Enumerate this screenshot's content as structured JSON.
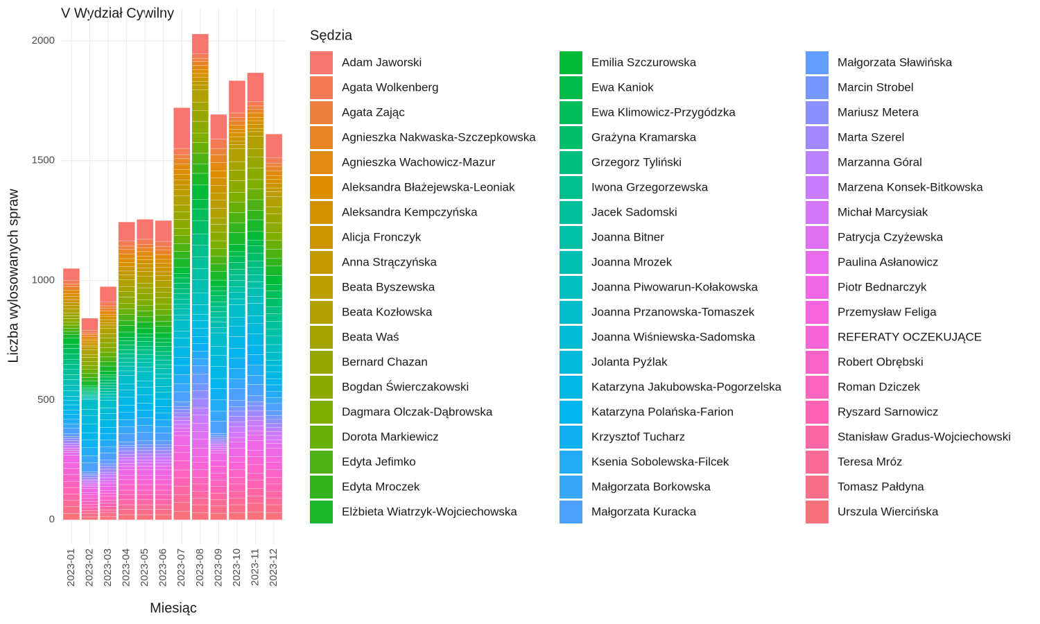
{
  "chart_data": {
    "type": "stacked_bar",
    "title": "V Wydział Cywilny",
    "x_label": "Miesiąc",
    "y_label": "Liczba wylosowanych spraw",
    "legend_title": "Sędzia",
    "categories": [
      "2023-01",
      "2023-02",
      "2023-03",
      "2023-04",
      "2023-05",
      "2023-06",
      "2023-07",
      "2023-08",
      "2023-09",
      "2023-10",
      "2023-11",
      "2023-12"
    ],
    "ylim": [
      -102,
      2134
    ],
    "yticks": [
      0,
      500,
      1000,
      1500,
      2000
    ],
    "grid": true,
    "legend_position": "right",
    "series": [
      {
        "name": "Adam Jaworski",
        "color": "#F8766D",
        "values": [
          50,
          50,
          65,
          80,
          83,
          87,
          170,
          82,
          103,
          135,
          120,
          100
        ]
      },
      {
        "name": "Agata Wolkenberg",
        "color": "#F37B56",
        "values": [
          16,
          11,
          15,
          21,
          21,
          22,
          26,
          20,
          39,
          20,
          19,
          21
        ]
      },
      {
        "name": "Agata Zając",
        "color": "#ED7F3F",
        "values": [
          11,
          7,
          10,
          14,
          14,
          15,
          17,
          13,
          26,
          13,
          13,
          14
        ]
      },
      {
        "name": "Agnieszka Nakwaska-Szczepkowska",
        "color": "#E88428",
        "values": [
          13,
          9,
          12,
          18,
          17,
          18,
          22,
          17,
          32,
          17,
          16,
          18
        ]
      },
      {
        "name": "Agnieszka Wachowicz-Mazur",
        "color": "#E28911",
        "values": [
          15,
          10,
          13,
          20,
          19,
          20,
          24,
          18,
          35,
          18,
          18,
          20
        ]
      },
      {
        "name": "Aleksandra Błażejewska-Leoniak",
        "color": "#DC8D00",
        "values": [
          12,
          8,
          11,
          16,
          15,
          16,
          20,
          15,
          29,
          15,
          14,
          16
        ]
      },
      {
        "name": "Aleksandra Kempczyńska",
        "color": "#D49100",
        "values": [
          13,
          9,
          12,
          18,
          17,
          18,
          22,
          17,
          32,
          17,
          16,
          18
        ]
      },
      {
        "name": "Alicja Fronczyk",
        "color": "#CC9500",
        "values": [
          13,
          9,
          12,
          18,
          17,
          18,
          22,
          17,
          32,
          17,
          16,
          18
        ]
      },
      {
        "name": "Anna Strączyńska",
        "color": "#C39900",
        "values": [
          12,
          8,
          11,
          16,
          15,
          16,
          20,
          15,
          29,
          15,
          14,
          16
        ]
      },
      {
        "name": "Beata Byszewska",
        "color": "#BB9D00",
        "values": [
          15,
          10,
          13,
          20,
          19,
          20,
          24,
          18,
          35,
          18,
          18,
          20
        ]
      },
      {
        "name": "Beata Kozłowska",
        "color": "#B1A100",
        "values": [
          16,
          20,
          24,
          29,
          29,
          29,
          40,
          53,
          40,
          53,
          53,
          44
        ]
      },
      {
        "name": "Beata Waś",
        "color": "#A4A400",
        "values": [
          11,
          13,
          16,
          20,
          20,
          20,
          27,
          36,
          27,
          36,
          36,
          29
        ]
      },
      {
        "name": "Bernard Chazan",
        "color": "#98A700",
        "values": [
          13,
          17,
          20,
          24,
          24,
          24,
          33,
          44,
          33,
          44,
          44,
          37
        ]
      },
      {
        "name": "Bogdan Świerczakowski",
        "color": "#8CAA00",
        "values": [
          15,
          18,
          22,
          27,
          27,
          27,
          37,
          49,
          37,
          49,
          49,
          40
        ]
      },
      {
        "name": "Dagmara Olczak-Dąbrowska",
        "color": "#7FAD00",
        "values": [
          12,
          15,
          18,
          22,
          22,
          22,
          30,
          40,
          30,
          40,
          40,
          33
        ]
      },
      {
        "name": "Dorota Markiewicz",
        "color": "#68B009",
        "values": [
          13,
          17,
          20,
          24,
          24,
          24,
          33,
          44,
          33,
          44,
          44,
          37
        ]
      },
      {
        "name": "Edyta Jefimko",
        "color": "#4EB215",
        "values": [
          13,
          17,
          20,
          24,
          24,
          24,
          33,
          44,
          33,
          44,
          44,
          37
        ]
      },
      {
        "name": "Edyta Mroczek",
        "color": "#34B520",
        "values": [
          12,
          15,
          18,
          22,
          22,
          22,
          30,
          40,
          30,
          40,
          40,
          33
        ]
      },
      {
        "name": "Elżbieta Wiatrzyk-Wojciechowska",
        "color": "#1AB72C",
        "values": [
          15,
          18,
          22,
          27,
          27,
          27,
          37,
          49,
          37,
          49,
          49,
          40
        ]
      },
      {
        "name": "Emilia Szczurowska",
        "color": "#00BA38",
        "values": [
          26,
          7,
          14,
          22,
          22,
          23,
          26,
          60,
          26,
          30,
          36,
          38
        ]
      },
      {
        "name": "Ewa Kaniok",
        "color": "#00BB4A",
        "values": [
          18,
          5,
          10,
          14,
          14,
          15,
          18,
          40,
          18,
          20,
          24,
          26
        ]
      },
      {
        "name": "Ewa Klimowicz-Przygódzka",
        "color": "#00BD5B",
        "values": [
          22,
          6,
          12,
          18,
          18,
          19,
          22,
          50,
          22,
          25,
          30,
          32
        ]
      },
      {
        "name": "Grażyna Kramarska",
        "color": "#00BE6C",
        "values": [
          24,
          7,
          13,
          20,
          20,
          21,
          24,
          55,
          24,
          28,
          33,
          35
        ]
      },
      {
        "name": "Grzegorz Tyliński",
        "color": "#00BF7E",
        "values": [
          20,
          5,
          11,
          16,
          16,
          17,
          20,
          45,
          20,
          23,
          27,
          29
        ]
      },
      {
        "name": "Iwona Grzegorzewska",
        "color": "#00C08E",
        "values": [
          22,
          6,
          12,
          18,
          18,
          19,
          22,
          50,
          22,
          25,
          30,
          32
        ]
      },
      {
        "name": "Jacek Sadomski",
        "color": "#00C09A",
        "values": [
          22,
          6,
          12,
          18,
          18,
          19,
          22,
          50,
          22,
          25,
          30,
          32
        ]
      },
      {
        "name": "Joanna Bitner",
        "color": "#00C0A6",
        "values": [
          20,
          5,
          11,
          16,
          16,
          17,
          20,
          45,
          20,
          23,
          27,
          29
        ]
      },
      {
        "name": "Joanna Mrozek",
        "color": "#00BFB2",
        "values": [
          24,
          7,
          13,
          20,
          20,
          21,
          24,
          55,
          24,
          28,
          33,
          35
        ]
      },
      {
        "name": "Joanna Piwowarun-Kołakowska",
        "color": "#00BFBE",
        "values": [
          22,
          6,
          12,
          18,
          18,
          19,
          22,
          50,
          22,
          25,
          30,
          32
        ]
      },
      {
        "name": "Joanna Przanowska-Tomaszek",
        "color": "#00BEC9",
        "values": [
          24,
          40,
          33,
          37,
          39,
          35,
          45,
          39,
          56,
          53,
          51,
          33
        ]
      },
      {
        "name": "Joanna Wiśniewska-Sadomska",
        "color": "#00BCD2",
        "values": [
          16,
          27,
          22,
          24,
          26,
          23,
          30,
          26,
          37,
          36,
          34,
          22
        ]
      },
      {
        "name": "Jolanta Pyźlak",
        "color": "#00B9DB",
        "values": [
          20,
          33,
          28,
          31,
          32,
          29,
          38,
          32,
          47,
          44,
          43,
          27
        ]
      },
      {
        "name": "Katarzyna Jakubowska-Pogorzelska",
        "color": "#00B7E4",
        "values": [
          22,
          37,
          31,
          34,
          35,
          32,
          42,
          35,
          51,
          49,
          47,
          30
        ]
      },
      {
        "name": "Katarzyna Polańska-Farion",
        "color": "#00B5EE",
        "values": [
          18,
          30,
          25,
          28,
          29,
          26,
          34,
          29,
          42,
          40,
          39,
          24
        ]
      },
      {
        "name": "Krzysztof Tucharz",
        "color": "#0FB0F2",
        "values": [
          20,
          33,
          28,
          31,
          32,
          29,
          38,
          32,
          47,
          44,
          43,
          27
        ]
      },
      {
        "name": "Ksenia Sobolewska-Filcek",
        "color": "#24ABF6",
        "values": [
          20,
          33,
          28,
          31,
          32,
          29,
          38,
          32,
          47,
          44,
          43,
          27
        ]
      },
      {
        "name": "Małgorzata Borkowska",
        "color": "#38A6F9",
        "values": [
          18,
          30,
          25,
          28,
          29,
          26,
          34,
          29,
          42,
          40,
          39,
          24
        ]
      },
      {
        "name": "Małgorzata Kuracka",
        "color": "#4DA1FC",
        "values": [
          22,
          37,
          31,
          34,
          35,
          32,
          42,
          35,
          51,
          49,
          47,
          30
        ]
      },
      {
        "name": "Małgorzata Sławińska",
        "color": "#619CFF",
        "values": [
          12,
          9,
          15,
          15,
          16,
          16,
          19,
          41,
          11,
          27,
          25,
          21
        ]
      },
      {
        "name": "Marcin Strobel",
        "color": "#7795FF",
        "values": [
          8,
          6,
          10,
          10,
          11,
          11,
          12,
          28,
          7,
          18,
          16,
          14
        ]
      },
      {
        "name": "Mariusz Metera",
        "color": "#8C8FFF",
        "values": [
          10,
          8,
          12,
          13,
          13,
          13,
          16,
          34,
          9,
          22,
          21,
          17
        ]
      },
      {
        "name": "Marta Szerel",
        "color": "#A188FF",
        "values": [
          11,
          9,
          13,
          14,
          15,
          15,
          17,
          38,
          10,
          24,
          23,
          19
        ]
      },
      {
        "name": "Marzanna Góral",
        "color": "#B781FF",
        "values": [
          9,
          7,
          11,
          12,
          12,
          12,
          14,
          31,
          8,
          20,
          19,
          16
        ]
      },
      {
        "name": "Marzena Konsek-Bitkowska",
        "color": "#C97BFE",
        "values": [
          10,
          8,
          12,
          13,
          13,
          13,
          16,
          34,
          9,
          22,
          21,
          17
        ]
      },
      {
        "name": "Michał Marcysiak",
        "color": "#D376F8",
        "values": [
          10,
          8,
          12,
          13,
          13,
          13,
          16,
          34,
          9,
          22,
          21,
          17
        ]
      },
      {
        "name": "Patrycja Czyżewska",
        "color": "#DD71F2",
        "values": [
          9,
          7,
          11,
          12,
          12,
          12,
          14,
          31,
          8,
          20,
          19,
          16
        ]
      },
      {
        "name": "Paulina Asłanowicz",
        "color": "#E66CEC",
        "values": [
          11,
          9,
          13,
          14,
          15,
          15,
          17,
          38,
          10,
          24,
          23,
          19
        ]
      },
      {
        "name": "Piotr Bednarczyk",
        "color": "#F067E6",
        "values": [
          32,
          16,
          17,
          25,
          25,
          25,
          42,
          36,
          34,
          36,
          40,
          36
        ]
      },
      {
        "name": "Przemysław Feliga",
        "color": "#F664DE",
        "values": [
          22,
          10,
          11,
          17,
          17,
          17,
          28,
          24,
          22,
          24,
          26,
          24
        ]
      },
      {
        "name": "REFERATY OCZEKUJĄCE",
        "color": "#F864D3",
        "values": [
          27,
          13,
          14,
          21,
          21,
          21,
          35,
          30,
          28,
          30,
          33,
          30
        ]
      },
      {
        "name": "Robert Obrębski",
        "color": "#FA64C8",
        "values": [
          30,
          14,
          15,
          23,
          23,
          23,
          39,
          33,
          31,
          33,
          36,
          33
        ]
      },
      {
        "name": "Roman Dziczek",
        "color": "#FC64BD",
        "values": [
          24,
          12,
          13,
          19,
          19,
          19,
          32,
          27,
          25,
          27,
          30,
          27
        ]
      },
      {
        "name": "Ryszard Sarnowicz",
        "color": "#FE64B3",
        "values": [
          27,
          13,
          14,
          21,
          21,
          21,
          35,
          30,
          28,
          30,
          33,
          30
        ]
      },
      {
        "name": "Stanisław Gradus-Wojciechowski",
        "color": "#FE67A5",
        "values": [
          27,
          13,
          14,
          21,
          21,
          21,
          35,
          30,
          28,
          30,
          33,
          30
        ]
      },
      {
        "name": "Teresa Mróz",
        "color": "#FC6B97",
        "values": [
          24,
          12,
          13,
          19,
          19,
          19,
          32,
          27,
          25,
          27,
          30,
          27
        ]
      },
      {
        "name": "Tomasz Pałdyna",
        "color": "#FB6E89",
        "values": [
          30,
          14,
          15,
          23,
          23,
          23,
          39,
          33,
          31,
          33,
          36,
          33
        ]
      },
      {
        "name": "Urszula Wiercińska",
        "color": "#F9727B",
        "values": [
          27,
          13,
          14,
          21,
          21,
          21,
          35,
          30,
          28,
          30,
          33,
          30
        ]
      }
    ]
  }
}
